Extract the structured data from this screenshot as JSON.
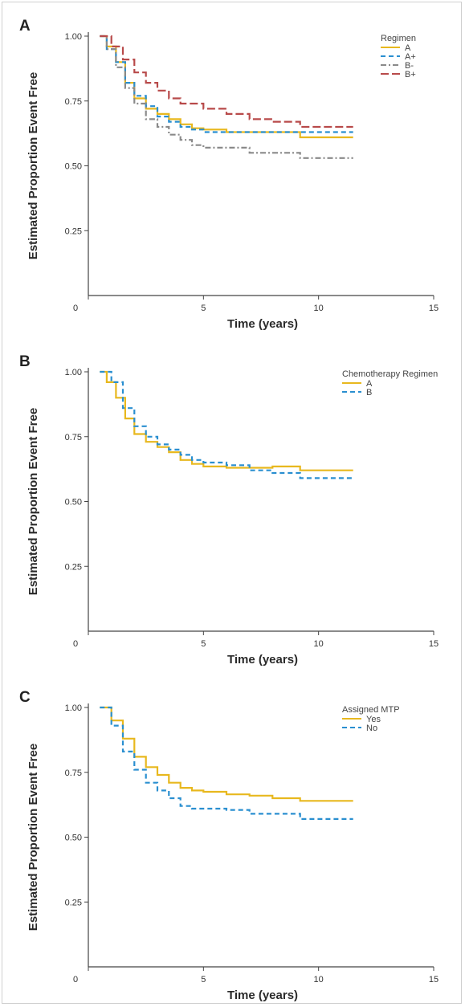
{
  "chart_data": [
    {
      "type": "line",
      "panel_label": "A",
      "xlabel": "Time (years)",
      "ylabel": "Estimated Proportion Event Free",
      "xlim": [
        0,
        15
      ],
      "ylim": [
        0,
        1.0
      ],
      "xticks": [
        0,
        5,
        10,
        15
      ],
      "yticks": [
        0.25,
        0.5,
        0.75,
        1.0
      ],
      "xtick_labels": [
        "0",
        "5",
        "10",
        "15"
      ],
      "ytick_labels": [
        "0.25",
        "0.50",
        "0.75",
        "1.00"
      ],
      "grid": false,
      "legend": {
        "title": "Regimen",
        "position": "top-right"
      },
      "series": [
        {
          "name": "A",
          "color": "#e8b81e",
          "dash": "solid",
          "x": [
            0.5,
            0.8,
            1.2,
            1.6,
            2.0,
            2.5,
            3.0,
            3.5,
            4.0,
            4.5,
            5.0,
            6.0,
            7.0,
            8.0,
            9.2,
            11.5
          ],
          "y": [
            1.0,
            0.96,
            0.9,
            0.82,
            0.76,
            0.72,
            0.7,
            0.68,
            0.66,
            0.645,
            0.64,
            0.63,
            0.63,
            0.63,
            0.61,
            0.61
          ]
        },
        {
          "name": "A+",
          "color": "#2a8fd0",
          "dash": "dash",
          "x": [
            0.5,
            0.8,
            1.2,
            1.6,
            2.0,
            2.5,
            3.0,
            3.5,
            4.0,
            4.5,
            5.0,
            6.0,
            8.0,
            9.2,
            11.5
          ],
          "y": [
            1.0,
            0.95,
            0.9,
            0.82,
            0.77,
            0.73,
            0.69,
            0.67,
            0.65,
            0.64,
            0.63,
            0.63,
            0.63,
            0.63,
            0.63
          ]
        },
        {
          "name": "B-",
          "color": "#8a8a8a",
          "dash": "dashdot",
          "x": [
            0.5,
            0.8,
            1.2,
            1.6,
            2.0,
            2.5,
            3.0,
            3.5,
            4.0,
            4.5,
            5.0,
            6.0,
            7.0,
            8.0,
            9.2,
            11.5
          ],
          "y": [
            1.0,
            0.95,
            0.88,
            0.8,
            0.74,
            0.68,
            0.65,
            0.62,
            0.6,
            0.58,
            0.57,
            0.57,
            0.55,
            0.55,
            0.53,
            0.53
          ]
        },
        {
          "name": "B+",
          "color": "#b84a4a",
          "dash": "longdash",
          "x": [
            0.5,
            1.0,
            1.5,
            2.0,
            2.5,
            3.0,
            3.5,
            4.0,
            5.0,
            6.0,
            7.0,
            8.0,
            9.2,
            11.5
          ],
          "y": [
            1.0,
            0.96,
            0.91,
            0.86,
            0.82,
            0.79,
            0.76,
            0.74,
            0.72,
            0.7,
            0.68,
            0.67,
            0.65,
            0.65
          ]
        }
      ]
    },
    {
      "type": "line",
      "panel_label": "B",
      "xlabel": "Time (years)",
      "ylabel": "Estimated Proportion Event Free",
      "xlim": [
        0,
        15
      ],
      "ylim": [
        0,
        1.0
      ],
      "xticks": [
        0,
        5,
        10,
        15
      ],
      "yticks": [
        0.25,
        0.5,
        0.75,
        1.0
      ],
      "xtick_labels": [
        "0",
        "5",
        "10",
        "15"
      ],
      "ytick_labels": [
        "0.25",
        "0.50",
        "0.75",
        "1.00"
      ],
      "grid": false,
      "legend": {
        "title": "Chemotherapy Regimen",
        "position": "top-right"
      },
      "series": [
        {
          "name": "A",
          "color": "#e8b81e",
          "dash": "solid",
          "x": [
            0.5,
            0.8,
            1.2,
            1.6,
            2.0,
            2.5,
            3.0,
            3.5,
            4.0,
            4.5,
            5.0,
            6.0,
            7.0,
            8.0,
            9.2,
            11.5
          ],
          "y": [
            1.0,
            0.96,
            0.9,
            0.82,
            0.76,
            0.73,
            0.71,
            0.69,
            0.66,
            0.645,
            0.635,
            0.63,
            0.63,
            0.635,
            0.62,
            0.62
          ]
        },
        {
          "name": "B",
          "color": "#2a8fd0",
          "dash": "dash",
          "x": [
            0.5,
            1.0,
            1.5,
            2.0,
            2.5,
            3.0,
            3.5,
            4.0,
            4.5,
            5.0,
            6.0,
            7.0,
            8.0,
            9.2,
            11.5
          ],
          "y": [
            1.0,
            0.96,
            0.86,
            0.79,
            0.75,
            0.72,
            0.7,
            0.68,
            0.66,
            0.65,
            0.64,
            0.62,
            0.61,
            0.59,
            0.59
          ]
        }
      ]
    },
    {
      "type": "line",
      "panel_label": "C",
      "xlabel": "Time (years)",
      "ylabel": "Estimated Proportion Event Free",
      "xlim": [
        0,
        15
      ],
      "ylim": [
        0,
        1.0
      ],
      "xticks": [
        0,
        5,
        10,
        15
      ],
      "yticks": [
        0.25,
        0.5,
        0.75,
        1.0
      ],
      "xtick_labels": [
        "0",
        "5",
        "10",
        "15"
      ],
      "ytick_labels": [
        "0.25",
        "0.50",
        "0.75",
        "1.00"
      ],
      "grid": false,
      "legend": {
        "title": "Assigned MTP",
        "position": "top-right"
      },
      "series": [
        {
          "name": "Yes",
          "color": "#e8b81e",
          "dash": "solid",
          "x": [
            0.5,
            1.0,
            1.5,
            2.0,
            2.5,
            3.0,
            3.5,
            4.0,
            4.5,
            5.0,
            6.0,
            7.0,
            8.0,
            9.2,
            11.5
          ],
          "y": [
            1.0,
            0.95,
            0.88,
            0.81,
            0.77,
            0.74,
            0.71,
            0.69,
            0.68,
            0.675,
            0.665,
            0.66,
            0.65,
            0.64,
            0.64
          ]
        },
        {
          "name": "No",
          "color": "#2a8fd0",
          "dash": "dash",
          "x": [
            0.5,
            1.0,
            1.5,
            2.0,
            2.5,
            3.0,
            3.5,
            4.0,
            4.5,
            5.0,
            6.0,
            7.0,
            8.0,
            9.2,
            11.5
          ],
          "y": [
            1.0,
            0.93,
            0.83,
            0.76,
            0.71,
            0.68,
            0.65,
            0.62,
            0.61,
            0.61,
            0.605,
            0.59,
            0.59,
            0.57,
            0.57
          ]
        }
      ]
    }
  ]
}
